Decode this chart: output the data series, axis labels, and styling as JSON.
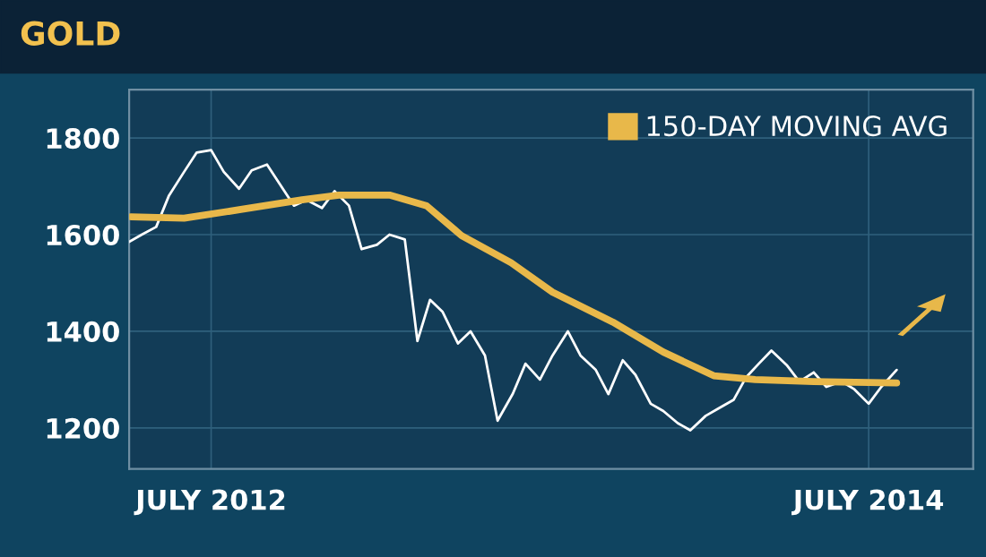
{
  "chart_data": {
    "type": "line",
    "title": "GOLD",
    "xlim": [
      "2012-04-01",
      "2014-10-25"
    ],
    "xticks": [
      {
        "value": "2012-07-01",
        "label": "JULY 2012"
      },
      {
        "value": "2014-07-01",
        "label": "JULY 2014"
      }
    ],
    "ylim": [
      1115,
      1900
    ],
    "yticks": [
      1200,
      1400,
      1600,
      1800
    ],
    "grid": true,
    "legend": "top right",
    "marker": "none",
    "line_style": "solid",
    "series": [
      {
        "color": "#ffffff",
        "x": [
          "2012-04-01",
          "2012-04-15",
          "2012-05-01",
          "2012-05-15",
          "2012-06-01",
          "2012-06-15",
          "2012-07-01",
          "2012-07-15",
          "2012-08-01",
          "2012-08-15",
          "2012-09-01",
          "2012-09-15",
          "2012-10-01",
          "2012-10-15",
          "2012-11-01",
          "2012-11-15",
          "2012-12-01",
          "2012-12-15",
          "2013-01-01",
          "2013-01-15",
          "2013-02-01",
          "2013-02-15",
          "2013-03-01",
          "2013-03-15",
          "2013-04-01",
          "2013-04-15",
          "2013-05-01",
          "2013-05-15",
          "2013-06-01",
          "2013-06-15",
          "2013-07-01",
          "2013-07-15",
          "2013-08-01",
          "2013-08-15",
          "2013-09-01",
          "2013-09-15",
          "2013-10-01",
          "2013-10-15",
          "2013-11-01",
          "2013-11-15",
          "2013-12-01",
          "2013-12-15",
          "2014-01-01",
          "2014-01-15",
          "2014-02-01",
          "2014-02-15",
          "2014-03-01",
          "2014-03-15",
          "2014-04-01",
          "2014-04-15",
          "2014-05-01",
          "2014-05-15",
          "2014-06-01",
          "2014-06-15",
          "2014-07-01",
          "2014-07-15",
          "2014-08-01"
        ],
        "values": [
          1585,
          1600,
          1616,
          1680,
          1730,
          1770,
          1775,
          1730,
          1695,
          1733,
          1745,
          1705,
          1660,
          1672,
          1655,
          1690,
          1660,
          1570,
          1579,
          1600,
          1590,
          1380,
          1465,
          1440,
          1375,
          1400,
          1350,
          1215,
          1271,
          1333,
          1300,
          1350,
          1400,
          1350,
          1320,
          1270,
          1340,
          1310,
          1250,
          1235,
          1210,
          1195,
          1225,
          1240,
          1258,
          1305,
          1333,
          1360,
          1330,
          1296,
          1315,
          1285,
          1296,
          1280,
          1250,
          1285,
          1320
        ]
      },
      {
        "name": "150-DAY MOVING AVG",
        "color": "#e8b84a",
        "x": [
          "2012-04-03",
          "2012-06-01",
          "2012-08-03",
          "2012-10-10",
          "2012-11-20",
          "2013-01-15",
          "2013-02-25",
          "2013-04-05",
          "2013-05-30",
          "2013-07-15",
          "2013-09-20",
          "2013-11-15",
          "2014-01-10",
          "2014-02-25",
          "2014-05-01",
          "2014-08-01"
        ],
        "values": [
          1637,
          1634,
          1652,
          1672,
          1682,
          1682,
          1660,
          1598,
          1542,
          1481,
          1419,
          1357,
          1308,
          1300,
          1296,
          1293
        ]
      }
    ]
  }
}
